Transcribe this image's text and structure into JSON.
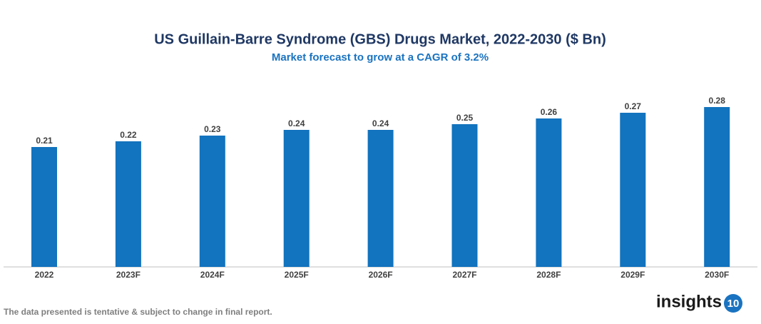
{
  "chart_data": {
    "type": "bar",
    "title": "US Guillain-Barre Syndrome (GBS) Drugs Market, 2022-2030 ($ Bn)",
    "subtitle": "Market forecast to grow at a CAGR of 3.2%",
    "categories": [
      "2022",
      "2023F",
      "2024F",
      "2025F",
      "2026F",
      "2027F",
      "2028F",
      "2029F",
      "2030F"
    ],
    "values": [
      0.21,
      0.22,
      0.23,
      0.24,
      0.24,
      0.25,
      0.26,
      0.27,
      0.28
    ],
    "color": "#1273be"
  },
  "footnote": "The data presented is tentative & subject to change in final report.",
  "logo": {
    "text": "insights",
    "badge": "10"
  }
}
